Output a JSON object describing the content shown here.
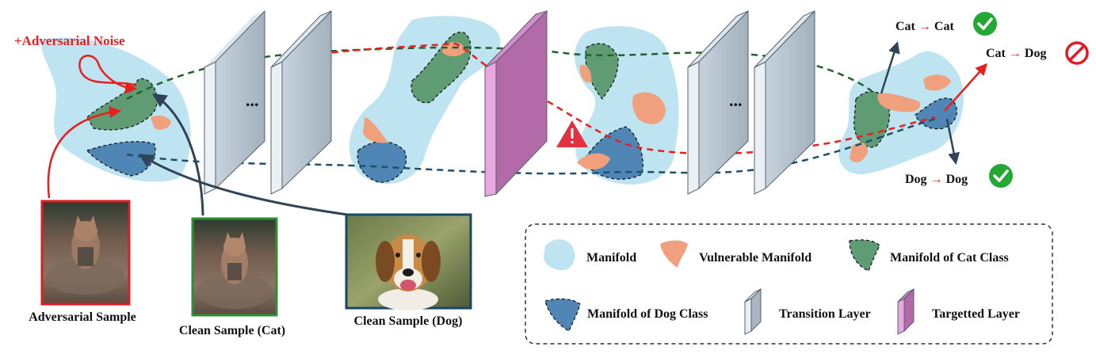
{
  "noise_label": "+Adversarial Noise",
  "predictions": {
    "cat_cat": {
      "from": "Cat",
      "arrow": "→",
      "to": "Cat"
    },
    "cat_dog": {
      "from": "Cat",
      "arrow": "→",
      "to": "Dog"
    },
    "dog_dog": {
      "from": "Dog",
      "arrow": "→",
      "to": "Dog"
    }
  },
  "samples": {
    "adversarial": "Adversarial Sample",
    "clean_cat": "Clean Sample (Cat)",
    "clean_dog": "Clean Sample (Dog)"
  },
  "legend": {
    "manifold": "Manifold",
    "vulnerable": "Vulnerable Manifold",
    "cat_class": "Manifold of Cat Class",
    "dog_class": "Manifold of Dog Class",
    "transition": "Transition Layer",
    "targetted": "Targetted Layer"
  },
  "ellipsis": "...",
  "colors": {
    "manifold": "#bfe4f1",
    "vulnerable": "#f0a07c",
    "cat_class": "#5f9c74",
    "dog_class": "#4f86b5",
    "transition_face": "#a7b6c2",
    "targetted_face": "#b36aa8",
    "attack": "#e81f1f",
    "cat_path": "#23622f",
    "dog_path": "#1f4f6b",
    "sample_adv_border": "#e01b24",
    "sample_cat_border": "#2f8f36",
    "sample_dog_border": "#1a4864",
    "check": "#22a833"
  }
}
